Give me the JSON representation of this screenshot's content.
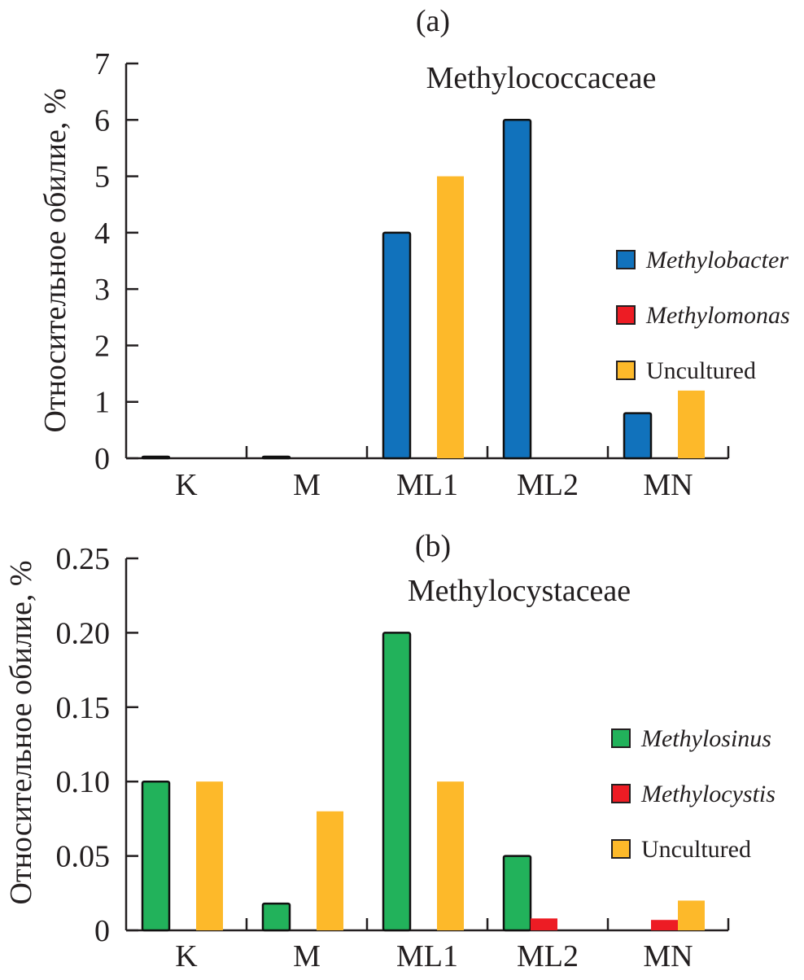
{
  "chart_data": [
    {
      "type": "bar",
      "panel_label": "(a)",
      "title": "Methylococcaceae",
      "ylabel": "Относительное обилие, %",
      "xlabel": "",
      "ylim": [
        0,
        7
      ],
      "yticks": [
        0,
        1,
        2,
        3,
        4,
        5,
        6,
        7
      ],
      "ytick_labels": [
        "0",
        "1",
        "2",
        "3",
        "4",
        "5",
        "6",
        "7"
      ],
      "categories": [
        "K",
        "M",
        "ML1",
        "ML2",
        "MN"
      ],
      "legend_position": "right",
      "series": [
        {
          "name": "Methylobacter",
          "italic": true,
          "color": "#1172bc",
          "outlined": true,
          "values": [
            0.02,
            0.02,
            4.0,
            6.0,
            0.8
          ]
        },
        {
          "name": "Methylomonas",
          "italic": true,
          "color": "#ed1c24",
          "outlined": false,
          "values": [
            0,
            0,
            0,
            0,
            0
          ]
        },
        {
          "name": "Uncultured",
          "italic": false,
          "color": "#fdb92a",
          "outlined": false,
          "values": [
            0,
            0,
            5.0,
            0,
            1.2
          ]
        }
      ]
    },
    {
      "type": "bar",
      "panel_label": "(b)",
      "title": "Methylocystaceae",
      "ylabel": "Относительное обилие, %",
      "xlabel": "",
      "ylim": [
        0,
        0.25
      ],
      "yticks": [
        0,
        0.05,
        0.1,
        0.15,
        0.2,
        0.25
      ],
      "ytick_labels": [
        "0",
        "0.05",
        "0.10",
        "0.15",
        "0.20",
        "0.25"
      ],
      "categories": [
        "K",
        "M",
        "ML1",
        "ML2",
        "MN"
      ],
      "legend_position": "right",
      "series": [
        {
          "name": "Methylosinus",
          "italic": true,
          "color": "#22b25b",
          "outlined": true,
          "values": [
            0.1,
            0.018,
            0.2,
            0.05,
            0
          ]
        },
        {
          "name": "Methylocystis",
          "italic": true,
          "color": "#ed1c24",
          "outlined": false,
          "values": [
            0,
            0,
            0,
            0.008,
            0.007
          ]
        },
        {
          "name": "Uncultured",
          "italic": false,
          "color": "#fdb92a",
          "outlined": false,
          "values": [
            0.1,
            0.08,
            0.1,
            0,
            0.02
          ]
        }
      ]
    }
  ]
}
